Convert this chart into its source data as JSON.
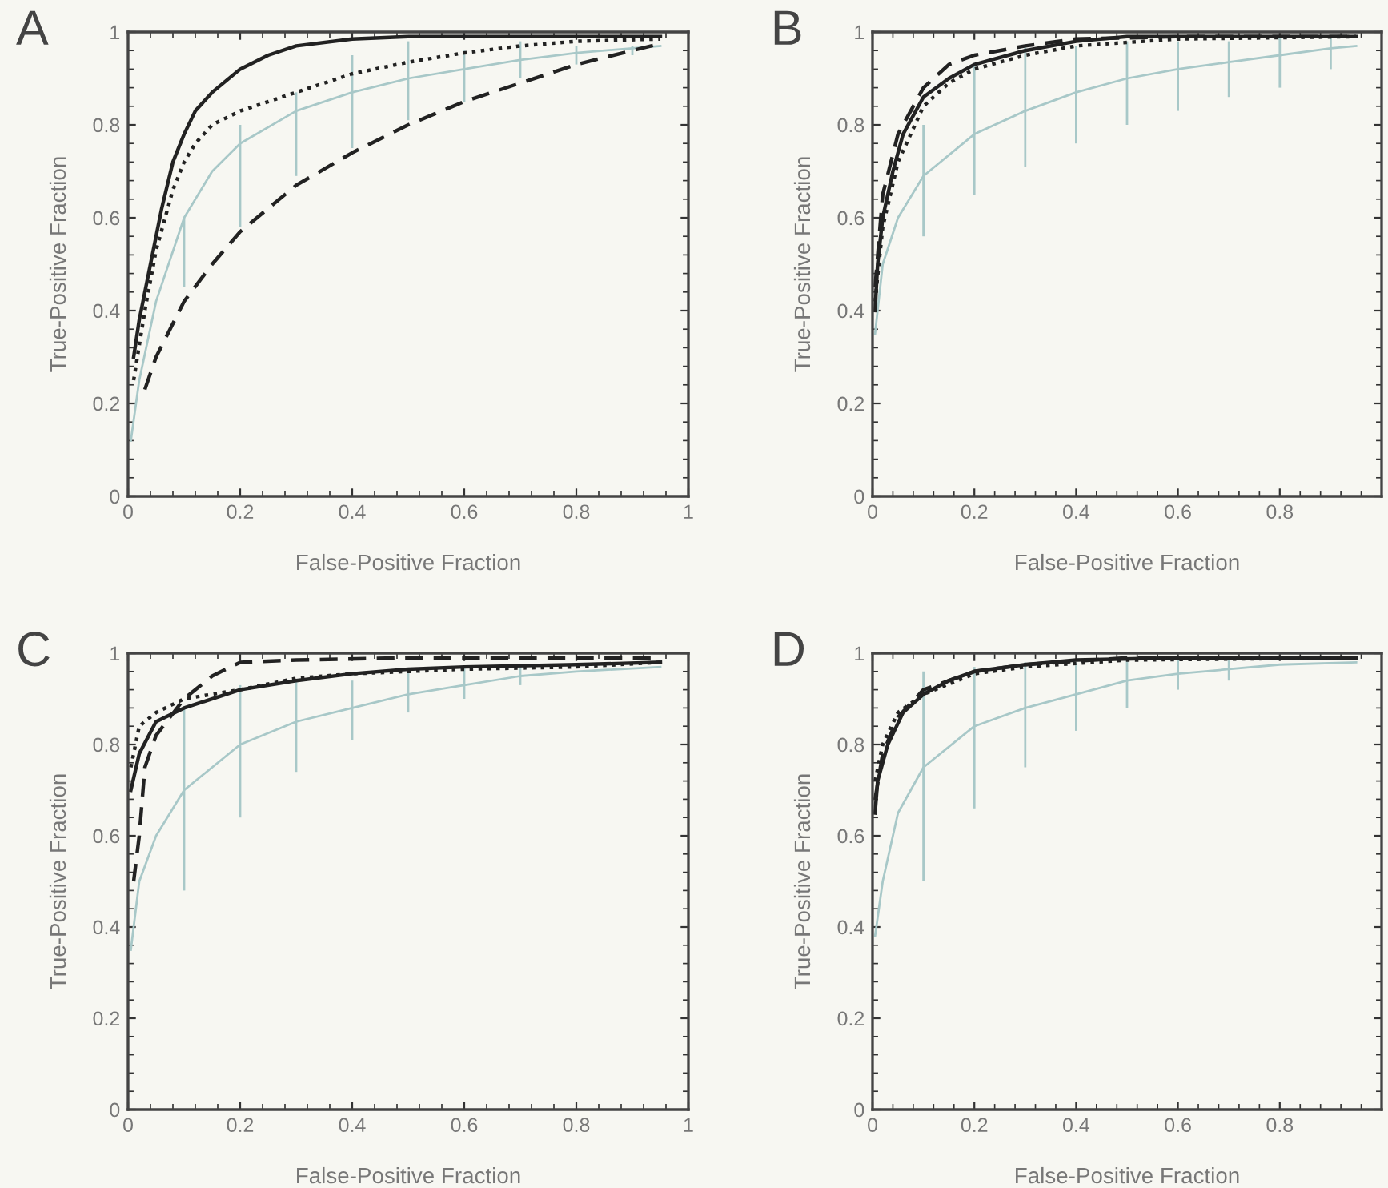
{
  "chart_data": [
    {
      "type": "line",
      "title": "A",
      "xlabel": "False-Positive Fraction",
      "ylabel": "True-Positive Fraction",
      "xlim": [
        0,
        1
      ],
      "ylim": [
        0,
        1
      ],
      "xticks": [
        0,
        0.2,
        0.4,
        0.6,
        0.8,
        1
      ],
      "yticks": [
        0,
        0.2,
        0.4,
        0.6,
        0.8,
        1
      ],
      "grid": false,
      "legend": false,
      "series": [
        {
          "color": "#a8c8c8",
          "line_style": "solid",
          "x": [
            0.005,
            0.02,
            0.05,
            0.1,
            0.15,
            0.2,
            0.3,
            0.4,
            0.5,
            0.6,
            0.7,
            0.8,
            0.9,
            0.95
          ],
          "values": [
            0.12,
            0.25,
            0.42,
            0.6,
            0.7,
            0.76,
            0.83,
            0.87,
            0.9,
            0.92,
            0.94,
            0.955,
            0.965,
            0.97
          ],
          "errors": [
            null,
            null,
            null,
            [
              0.45,
              0.6
            ],
            null,
            [
              0.58,
              0.8
            ],
            [
              0.69,
              0.87
            ],
            [
              0.75,
              0.95
            ],
            [
              0.81,
              0.98
            ],
            [
              0.85,
              0.96
            ],
            [
              0.9,
              0.98
            ],
            [
              0.93,
              0.97
            ],
            [
              0.95,
              0.97
            ],
            null
          ]
        },
        {
          "color": "#222222",
          "line_style": "solid",
          "x": [
            0.01,
            0.02,
            0.04,
            0.06,
            0.08,
            0.1,
            0.12,
            0.15,
            0.2,
            0.25,
            0.3,
            0.4,
            0.5,
            0.7,
            0.95
          ],
          "values": [
            0.3,
            0.38,
            0.5,
            0.62,
            0.72,
            0.78,
            0.83,
            0.87,
            0.92,
            0.95,
            0.97,
            0.985,
            0.99,
            0.99,
            0.99
          ]
        },
        {
          "color": "#222222",
          "line_style": "dotted",
          "x": [
            0.01,
            0.03,
            0.05,
            0.08,
            0.1,
            0.12,
            0.15,
            0.2,
            0.3,
            0.4,
            0.5,
            0.6,
            0.7,
            0.8,
            0.95
          ],
          "values": [
            0.25,
            0.4,
            0.53,
            0.66,
            0.72,
            0.76,
            0.8,
            0.83,
            0.87,
            0.91,
            0.935,
            0.955,
            0.97,
            0.98,
            0.985
          ]
        },
        {
          "color": "#222222",
          "line_style": "dashed",
          "x": [
            0.03,
            0.05,
            0.1,
            0.15,
            0.2,
            0.3,
            0.4,
            0.5,
            0.6,
            0.7,
            0.8,
            0.9,
            0.95
          ],
          "values": [
            0.23,
            0.3,
            0.42,
            0.5,
            0.57,
            0.67,
            0.74,
            0.8,
            0.85,
            0.89,
            0.93,
            0.96,
            0.975
          ]
        }
      ]
    },
    {
      "type": "line",
      "title": "B",
      "xlabel": "False-Positive Fraction",
      "ylabel": "True-Positive Fraction",
      "xlim": [
        0,
        1
      ],
      "ylim": [
        0,
        1
      ],
      "xticks": [
        0,
        0.2,
        0.4,
        0.6,
        0.8
      ],
      "yticks": [
        0,
        0.2,
        0.4,
        0.6,
        0.8,
        1
      ],
      "grid": false,
      "legend": false,
      "series": [
        {
          "color": "#a8c8c8",
          "line_style": "solid",
          "x": [
            0.005,
            0.02,
            0.05,
            0.1,
            0.2,
            0.3,
            0.4,
            0.5,
            0.6,
            0.7,
            0.8,
            0.9,
            0.95
          ],
          "values": [
            0.35,
            0.5,
            0.6,
            0.69,
            0.78,
            0.83,
            0.87,
            0.9,
            0.92,
            0.935,
            0.95,
            0.965,
            0.97
          ],
          "errors": [
            null,
            null,
            null,
            [
              0.56,
              0.8
            ],
            [
              0.65,
              0.93
            ],
            [
              0.71,
              0.97
            ],
            [
              0.76,
              0.97
            ],
            [
              0.8,
              0.98
            ],
            [
              0.83,
              0.98
            ],
            [
              0.86,
              0.98
            ],
            [
              0.88,
              0.99
            ],
            [
              0.92,
              0.99
            ],
            null
          ]
        },
        {
          "color": "#222222",
          "line_style": "solid",
          "x": [
            0.005,
            0.01,
            0.02,
            0.04,
            0.06,
            0.1,
            0.15,
            0.2,
            0.3,
            0.4,
            0.5,
            0.7,
            0.95
          ],
          "values": [
            0.4,
            0.5,
            0.6,
            0.7,
            0.78,
            0.86,
            0.9,
            0.93,
            0.96,
            0.98,
            0.99,
            0.99,
            0.99
          ]
        },
        {
          "color": "#222222",
          "line_style": "dotted",
          "x": [
            0.005,
            0.02,
            0.05,
            0.1,
            0.15,
            0.2,
            0.3,
            0.4,
            0.6,
            0.95
          ],
          "values": [
            0.42,
            0.58,
            0.72,
            0.84,
            0.89,
            0.92,
            0.95,
            0.97,
            0.985,
            0.99
          ]
        },
        {
          "color": "#222222",
          "line_style": "dashed",
          "x": [
            0.005,
            0.02,
            0.05,
            0.1,
            0.15,
            0.2,
            0.3,
            0.4,
            0.6,
            0.95
          ],
          "values": [
            0.45,
            0.65,
            0.78,
            0.88,
            0.93,
            0.95,
            0.97,
            0.985,
            0.99,
            0.99
          ]
        }
      ]
    },
    {
      "type": "line",
      "title": "C",
      "xlabel": "False-Positive Fraction",
      "ylabel": "True-Positive Fraction",
      "xlim": [
        0,
        1
      ],
      "ylim": [
        0,
        1
      ],
      "xticks": [
        0,
        0.2,
        0.4,
        0.6,
        0.8,
        1
      ],
      "yticks": [
        0,
        0.2,
        0.4,
        0.6,
        0.8,
        1
      ],
      "grid": false,
      "legend": false,
      "series": [
        {
          "color": "#a8c8c8",
          "line_style": "solid",
          "x": [
            0.005,
            0.02,
            0.05,
            0.1,
            0.2,
            0.3,
            0.4,
            0.5,
            0.6,
            0.7,
            0.8,
            0.95
          ],
          "values": [
            0.35,
            0.5,
            0.6,
            0.7,
            0.8,
            0.85,
            0.88,
            0.91,
            0.93,
            0.95,
            0.96,
            0.97
          ],
          "errors": [
            null,
            null,
            null,
            [
              0.48,
              0.88
            ],
            [
              0.64,
              0.93
            ],
            [
              0.74,
              0.94
            ],
            [
              0.81,
              0.94
            ],
            [
              0.87,
              0.96
            ],
            [
              0.9,
              0.97
            ],
            [
              0.93,
              0.97
            ],
            null,
            null
          ]
        },
        {
          "color": "#222222",
          "line_style": "solid",
          "x": [
            0.005,
            0.02,
            0.05,
            0.1,
            0.2,
            0.3,
            0.4,
            0.5,
            0.6,
            0.8,
            0.95
          ],
          "values": [
            0.7,
            0.78,
            0.85,
            0.88,
            0.92,
            0.94,
            0.955,
            0.965,
            0.97,
            0.975,
            0.98
          ]
        },
        {
          "color": "#222222",
          "line_style": "dotted",
          "x": [
            0.005,
            0.02,
            0.05,
            0.1,
            0.2,
            0.3,
            0.4,
            0.6,
            0.8,
            0.95
          ],
          "values": [
            0.75,
            0.84,
            0.87,
            0.9,
            0.92,
            0.945,
            0.955,
            0.965,
            0.97,
            0.98
          ]
        },
        {
          "color": "#222222",
          "line_style": "dashed",
          "x": [
            0.01,
            0.02,
            0.03,
            0.05,
            0.1,
            0.15,
            0.2,
            0.3,
            0.5,
            0.95
          ],
          "values": [
            0.5,
            0.6,
            0.75,
            0.82,
            0.9,
            0.95,
            0.98,
            0.985,
            0.99,
            0.99
          ]
        }
      ]
    },
    {
      "type": "line",
      "title": "D",
      "xlabel": "False-Positive Fraction",
      "ylabel": "True-Positive Fraction",
      "xlim": [
        0,
        1
      ],
      "ylim": [
        0,
        1
      ],
      "xticks": [
        0,
        0.2,
        0.4,
        0.6,
        0.8
      ],
      "yticks": [
        0,
        0.2,
        0.4,
        0.6,
        0.8,
        1
      ],
      "grid": false,
      "legend": false,
      "series": [
        {
          "color": "#a8c8c8",
          "line_style": "solid",
          "x": [
            0.005,
            0.02,
            0.05,
            0.1,
            0.2,
            0.3,
            0.4,
            0.5,
            0.6,
            0.7,
            0.8,
            0.95
          ],
          "values": [
            0.38,
            0.5,
            0.65,
            0.75,
            0.84,
            0.88,
            0.91,
            0.94,
            0.955,
            0.965,
            0.975,
            0.98
          ],
          "errors": [
            null,
            null,
            null,
            [
              0.5,
              0.96
            ],
            [
              0.66,
              0.97
            ],
            [
              0.75,
              0.98
            ],
            [
              0.83,
              0.98
            ],
            [
              0.88,
              0.99
            ],
            [
              0.92,
              0.99
            ],
            [
              0.94,
              0.99
            ],
            null,
            null
          ]
        },
        {
          "color": "#222222",
          "line_style": "solid",
          "x": [
            0.005,
            0.01,
            0.03,
            0.06,
            0.1,
            0.15,
            0.2,
            0.3,
            0.4,
            0.6,
            0.95
          ],
          "values": [
            0.65,
            0.72,
            0.8,
            0.87,
            0.91,
            0.94,
            0.96,
            0.975,
            0.985,
            0.99,
            0.99
          ]
        },
        {
          "color": "#222222",
          "line_style": "dotted",
          "x": [
            0.005,
            0.02,
            0.05,
            0.1,
            0.2,
            0.3,
            0.5,
            0.95
          ],
          "values": [
            0.72,
            0.8,
            0.87,
            0.91,
            0.955,
            0.97,
            0.985,
            0.99
          ]
        },
        {
          "color": "#222222",
          "line_style": "dashed",
          "x": [
            0.005,
            0.02,
            0.05,
            0.1,
            0.2,
            0.3,
            0.5,
            0.95
          ],
          "values": [
            0.68,
            0.78,
            0.86,
            0.92,
            0.96,
            0.975,
            0.99,
            0.99
          ]
        }
      ]
    }
  ]
}
